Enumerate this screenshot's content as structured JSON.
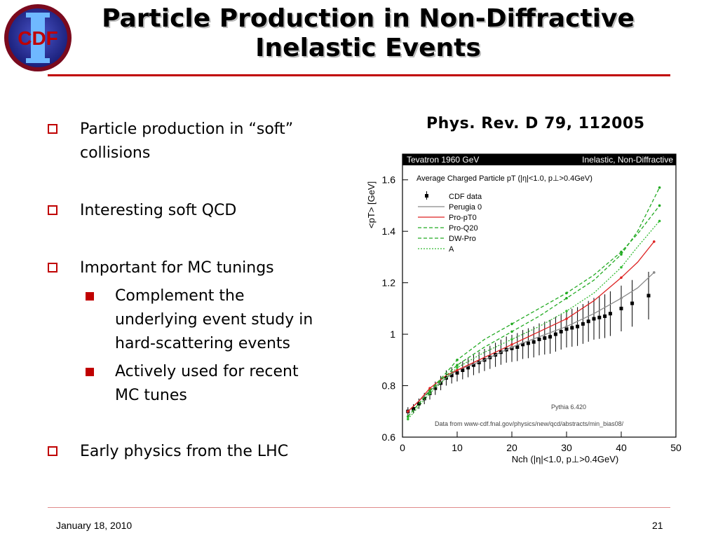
{
  "logo": {
    "text": "CDF",
    "numeral": "II"
  },
  "slide": {
    "title_line1": "Particle Production in Non-Diffractive",
    "title_line2": "Inelastic Events",
    "reference": "Phys. Rev. D 79, 112005",
    "footer_date": "January 18, 2010",
    "page_number": "21",
    "accent_color": "#c00000"
  },
  "bullets": [
    {
      "level": 1,
      "lines": [
        "Particle production in “soft”",
        "collisions"
      ]
    },
    {
      "level": 1,
      "lines": [
        "Interesting soft QCD"
      ]
    },
    {
      "level": 1,
      "lines": [
        "Important for MC tunings"
      ]
    },
    {
      "level": 2,
      "lines": [
        "Complement the",
        "underlying event study in",
        "hard-scattering events"
      ]
    },
    {
      "level": 2,
      "lines": [
        "Actively used for recent",
        "MC tunes"
      ]
    },
    {
      "level": 1,
      "lines": [
        "Early physics from the LHC"
      ]
    }
  ],
  "chart_data": {
    "type": "line",
    "header_left": "Tevatron 1960 GeV",
    "header_right": "Inelastic, Non-Diffractive",
    "subtitle": "Average Charged Particle pT (|η|<1.0, p⊥>0.4GeV)",
    "xlabel": "Nch (|η|<1.0, p⊥>0.4GeV)",
    "ylabel": "<pT> [GeV]",
    "xlim": [
      0,
      50
    ],
    "ylim": [
      0.6,
      1.7
    ],
    "x_ticks": [
      0,
      10,
      20,
      30,
      40,
      50
    ],
    "y_ticks": [
      0.6,
      0.8,
      1.0,
      1.2,
      1.4,
      1.6
    ],
    "y_tick_labels": [
      "0.6",
      "0.8",
      "1",
      "1.2",
      "1.4",
      "1.6"
    ],
    "annotations": [
      "Pythia 6.420",
      "Data from www-cdf.fnal.gov/physics/new/qcd/abstracts/min_bias08/"
    ],
    "series": [
      {
        "name": "CDF data",
        "color": "#000000",
        "style": "points",
        "x": [
          1,
          2,
          3,
          4,
          5,
          6,
          7,
          8,
          9,
          10,
          11,
          12,
          13,
          14,
          15,
          16,
          17,
          18,
          19,
          20,
          21,
          22,
          23,
          24,
          25,
          26,
          27,
          28,
          29,
          30,
          31,
          32,
          33,
          34,
          35,
          36,
          37,
          38,
          40,
          42,
          45
        ],
        "y": [
          0.7,
          0.71,
          0.73,
          0.75,
          0.77,
          0.79,
          0.81,
          0.83,
          0.84,
          0.85,
          0.86,
          0.87,
          0.88,
          0.89,
          0.9,
          0.91,
          0.92,
          0.93,
          0.94,
          0.945,
          0.95,
          0.96,
          0.965,
          0.97,
          0.98,
          0.985,
          0.99,
          1.0,
          1.01,
          1.02,
          1.025,
          1.03,
          1.04,
          1.05,
          1.06,
          1.065,
          1.07,
          1.08,
          1.1,
          1.12,
          1.15
        ]
      },
      {
        "name": "Perugia 0",
        "color": "#888888",
        "style": "solid",
        "x": [
          1,
          3,
          5,
          8,
          10,
          15,
          20,
          25,
          30,
          35,
          40,
          43,
          46
        ],
        "y": [
          0.7,
          0.74,
          0.78,
          0.83,
          0.86,
          0.9,
          0.95,
          0.99,
          1.03,
          1.08,
          1.14,
          1.18,
          1.24
        ]
      },
      {
        "name": "Pro-pT0",
        "color": "#dd2222",
        "style": "solid",
        "x": [
          1,
          3,
          5,
          8,
          10,
          15,
          20,
          25,
          30,
          35,
          40,
          43,
          46
        ],
        "y": [
          0.7,
          0.74,
          0.79,
          0.84,
          0.86,
          0.91,
          0.96,
          1.01,
          1.06,
          1.13,
          1.22,
          1.28,
          1.36
        ]
      },
      {
        "name": "Pro-Q20",
        "color": "#22aa22",
        "style": "dashed",
        "x": [
          1,
          3,
          5,
          8,
          10,
          15,
          20,
          25,
          30,
          35,
          40,
          43,
          47
        ],
        "y": [
          0.68,
          0.73,
          0.78,
          0.84,
          0.88,
          0.95,
          1.01,
          1.07,
          1.14,
          1.21,
          1.31,
          1.4,
          1.57
        ]
      },
      {
        "name": "DW-Pro",
        "color": "#22aa22",
        "style": "dashed",
        "x": [
          1,
          3,
          5,
          8,
          10,
          15,
          20,
          25,
          30,
          35,
          40,
          43,
          47
        ],
        "y": [
          0.68,
          0.73,
          0.78,
          0.85,
          0.9,
          0.98,
          1.04,
          1.1,
          1.16,
          1.23,
          1.32,
          1.39,
          1.5
        ]
      },
      {
        "name": "A",
        "color": "#33bb33",
        "style": "dotted",
        "x": [
          1,
          3,
          5,
          8,
          10,
          15,
          20,
          25,
          30,
          35,
          40,
          43,
          47
        ],
        "y": [
          0.67,
          0.72,
          0.77,
          0.83,
          0.87,
          0.93,
          0.98,
          1.03,
          1.09,
          1.16,
          1.26,
          1.34,
          1.44
        ]
      }
    ]
  }
}
